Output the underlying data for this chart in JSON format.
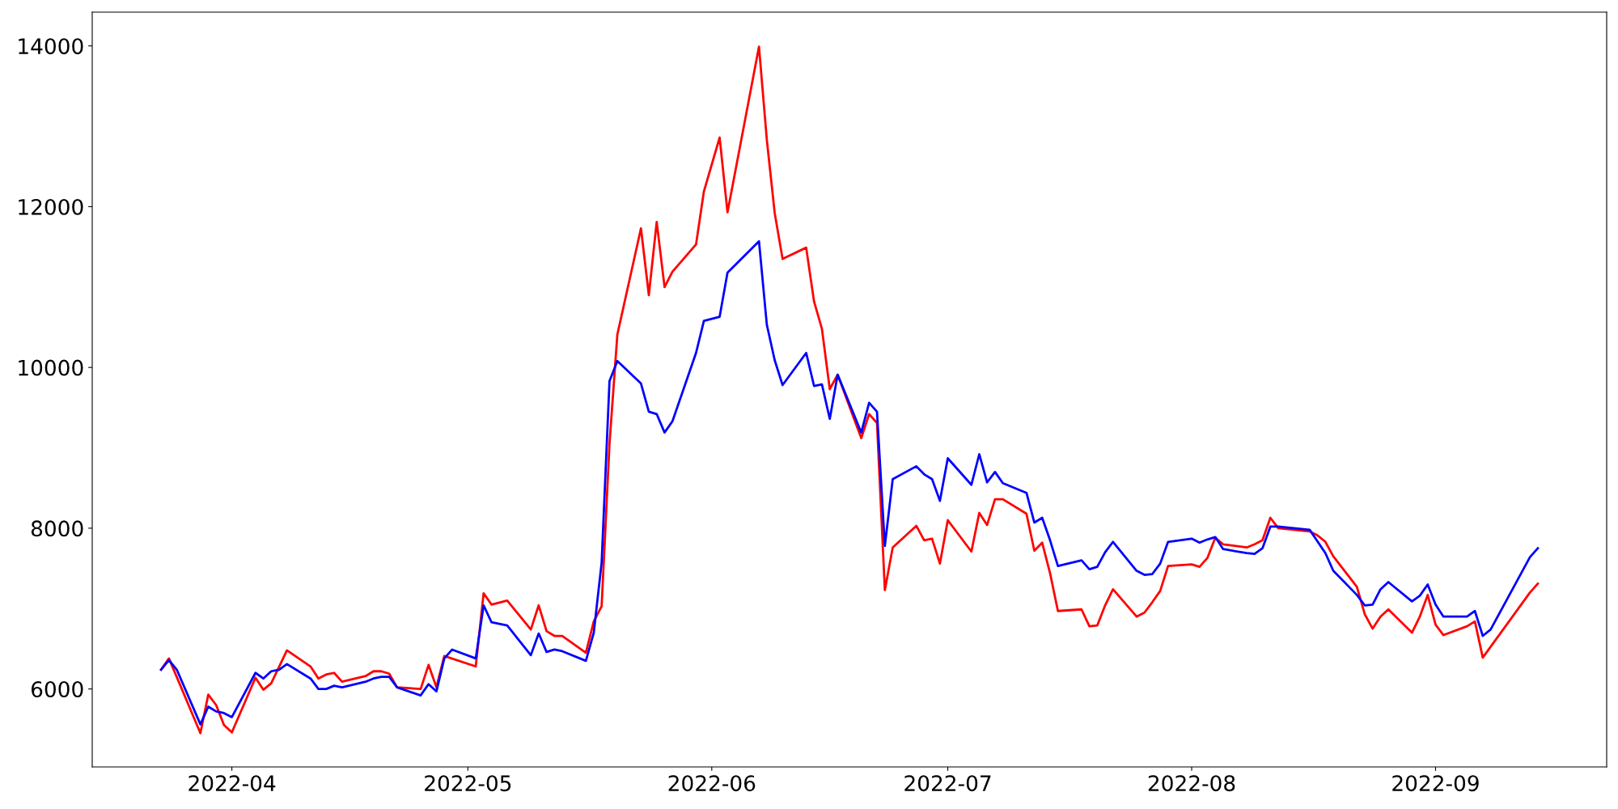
{
  "chart_data": {
    "type": "line",
    "xlim": [
      "2022-03-14T06:00",
      "2022-09-22T18:00"
    ],
    "ylim": [
      5030,
      14420
    ],
    "xticks": [
      {
        "value": "2022-04-01",
        "label": "2022-04"
      },
      {
        "value": "2022-05-01",
        "label": "2022-05"
      },
      {
        "value": "2022-06-01",
        "label": "2022-06"
      },
      {
        "value": "2022-07-01",
        "label": "2022-07"
      },
      {
        "value": "2022-08-01",
        "label": "2022-08"
      },
      {
        "value": "2022-09-01",
        "label": "2022-09"
      }
    ],
    "yticks": [
      6000,
      8000,
      10000,
      12000,
      14000
    ],
    "grid": false,
    "marker": "none",
    "line_style": "solid",
    "series": [
      {
        "color": "#ff0000",
        "x": [
          "2022-03-23",
          "2022-03-24",
          "2022-03-28",
          "2022-03-29",
          "2022-03-30",
          "2022-03-31",
          "2022-04-01",
          "2022-04-04",
          "2022-04-05",
          "2022-04-06",
          "2022-04-08",
          "2022-04-11",
          "2022-04-12",
          "2022-04-13",
          "2022-04-14",
          "2022-04-15",
          "2022-04-18",
          "2022-04-19",
          "2022-04-20",
          "2022-04-21",
          "2022-04-22",
          "2022-04-25",
          "2022-04-26",
          "2022-04-27",
          "2022-04-28",
          "2022-05-02",
          "2022-05-03",
          "2022-05-04",
          "2022-05-06",
          "2022-05-09",
          "2022-05-10",
          "2022-05-11",
          "2022-05-12",
          "2022-05-13",
          "2022-05-16",
          "2022-05-17",
          "2022-05-18",
          "2022-05-19",
          "2022-05-20",
          "2022-05-23",
          "2022-05-24",
          "2022-05-25",
          "2022-05-26",
          "2022-05-27",
          "2022-05-30",
          "2022-05-31",
          "2022-06-02",
          "2022-06-03",
          "2022-06-07",
          "2022-06-08",
          "2022-06-09",
          "2022-06-10",
          "2022-06-13",
          "2022-06-14",
          "2022-06-15",
          "2022-06-16",
          "2022-06-17",
          "2022-06-20",
          "2022-06-21",
          "2022-06-22",
          "2022-06-23",
          "2022-06-24",
          "2022-06-27",
          "2022-06-28",
          "2022-06-29",
          "2022-06-30",
          "2022-07-01",
          "2022-07-04",
          "2022-07-05",
          "2022-07-06",
          "2022-07-07",
          "2022-07-08",
          "2022-07-11",
          "2022-07-12",
          "2022-07-13",
          "2022-07-14",
          "2022-07-15",
          "2022-07-18",
          "2022-07-19",
          "2022-07-20",
          "2022-07-21",
          "2022-07-22",
          "2022-07-25",
          "2022-07-26",
          "2022-07-27",
          "2022-07-28",
          "2022-07-29",
          "2022-08-01",
          "2022-08-02",
          "2022-08-03",
          "2022-08-04",
          "2022-08-05",
          "2022-08-08",
          "2022-08-09",
          "2022-08-10",
          "2022-08-11",
          "2022-08-12",
          "2022-08-16",
          "2022-08-17",
          "2022-08-18",
          "2022-08-19",
          "2022-08-22",
          "2022-08-23",
          "2022-08-24",
          "2022-08-25",
          "2022-08-26",
          "2022-08-29",
          "2022-08-30",
          "2022-08-31",
          "2022-09-01",
          "2022-09-02",
          "2022-09-05",
          "2022-09-06",
          "2022-09-07",
          "2022-09-13",
          "2022-09-14"
        ],
        "values": [
          6240,
          6380,
          5450,
          5930,
          5800,
          5550,
          5460,
          6140,
          5990,
          6070,
          6480,
          6280,
          6130,
          6180,
          6200,
          6090,
          6160,
          6220,
          6220,
          6190,
          6020,
          6000,
          6300,
          6020,
          6410,
          6280,
          7190,
          7050,
          7100,
          6740,
          7040,
          6720,
          6660,
          6660,
          6450,
          6840,
          7030,
          9050,
          10410,
          11730,
          10900,
          11810,
          11000,
          11190,
          11530,
          12190,
          12860,
          11930,
          13990,
          12830,
          11920,
          11350,
          11490,
          10820,
          10480,
          9730,
          9910,
          9120,
          9420,
          9310,
          7230,
          7760,
          8030,
          7850,
          7870,
          7560,
          8100,
          7710,
          8190,
          8040,
          8360,
          8360,
          8180,
          7720,
          7820,
          7440,
          6970,
          6990,
          6780,
          6790,
          7040,
          7240,
          6900,
          6950,
          7080,
          7220,
          7530,
          7550,
          7520,
          7630,
          7880,
          7800,
          7760,
          7800,
          7850,
          8130,
          8000,
          7960,
          7910,
          7830,
          7650,
          7270,
          6930,
          6750,
          6900,
          6990,
          6700,
          6900,
          7170,
          6800,
          6670,
          6780,
          6840,
          6390,
          7200,
          7310
        ]
      },
      {
        "color": "#0000ff",
        "x": [
          "2022-03-23",
          "2022-03-24",
          "2022-03-25",
          "2022-03-28",
          "2022-03-29",
          "2022-03-30",
          "2022-03-31",
          "2022-04-01",
          "2022-04-04",
          "2022-04-05",
          "2022-04-06",
          "2022-04-07",
          "2022-04-08",
          "2022-04-11",
          "2022-04-12",
          "2022-04-13",
          "2022-04-14",
          "2022-04-15",
          "2022-04-18",
          "2022-04-19",
          "2022-04-20",
          "2022-04-21",
          "2022-04-22",
          "2022-04-25",
          "2022-04-26",
          "2022-04-27",
          "2022-04-28",
          "2022-04-29",
          "2022-05-02",
          "2022-05-03",
          "2022-05-04",
          "2022-05-06",
          "2022-05-09",
          "2022-05-10",
          "2022-05-11",
          "2022-05-12",
          "2022-05-13",
          "2022-05-16",
          "2022-05-17",
          "2022-05-18",
          "2022-05-19",
          "2022-05-20",
          "2022-05-23",
          "2022-05-24",
          "2022-05-25",
          "2022-05-26",
          "2022-05-27",
          "2022-05-30",
          "2022-05-31",
          "2022-06-02",
          "2022-06-03",
          "2022-06-07",
          "2022-06-08",
          "2022-06-09",
          "2022-06-10",
          "2022-06-13",
          "2022-06-14",
          "2022-06-15",
          "2022-06-16",
          "2022-06-17",
          "2022-06-20",
          "2022-06-21",
          "2022-06-22",
          "2022-06-23",
          "2022-06-24",
          "2022-06-27",
          "2022-06-28",
          "2022-06-29",
          "2022-06-30",
          "2022-07-01",
          "2022-07-04",
          "2022-07-05",
          "2022-07-06",
          "2022-07-07",
          "2022-07-08",
          "2022-07-11",
          "2022-07-12",
          "2022-07-13",
          "2022-07-14",
          "2022-07-15",
          "2022-07-18",
          "2022-07-19",
          "2022-07-20",
          "2022-07-21",
          "2022-07-22",
          "2022-07-25",
          "2022-07-26",
          "2022-07-27",
          "2022-07-28",
          "2022-07-29",
          "2022-08-01",
          "2022-08-02",
          "2022-08-03",
          "2022-08-04",
          "2022-08-05",
          "2022-08-08",
          "2022-08-09",
          "2022-08-10",
          "2022-08-11",
          "2022-08-12",
          "2022-08-16",
          "2022-08-18",
          "2022-08-19",
          "2022-08-22",
          "2022-08-23",
          "2022-08-24",
          "2022-08-25",
          "2022-08-26",
          "2022-08-29",
          "2022-08-30",
          "2022-08-31",
          "2022-09-01",
          "2022-09-02",
          "2022-09-05",
          "2022-09-06",
          "2022-09-07",
          "2022-09-08",
          "2022-09-13",
          "2022-09-14"
        ],
        "values": [
          6240,
          6360,
          6240,
          5560,
          5780,
          5720,
          5700,
          5650,
          6200,
          6130,
          6220,
          6240,
          6310,
          6130,
          6000,
          6000,
          6040,
          6020,
          6090,
          6130,
          6150,
          6150,
          6020,
          5920,
          6060,
          5970,
          6380,
          6490,
          6380,
          7040,
          6830,
          6790,
          6420,
          6690,
          6460,
          6490,
          6470,
          6350,
          6700,
          7570,
          9830,
          10080,
          9800,
          9450,
          9420,
          9190,
          9330,
          10180,
          10580,
          10630,
          11180,
          11570,
          10530,
          10090,
          9780,
          10180,
          9770,
          9790,
          9360,
          9910,
          9190,
          9560,
          9450,
          7780,
          8610,
          8770,
          8670,
          8610,
          8340,
          8870,
          8540,
          8920,
          8570,
          8700,
          8560,
          8440,
          8070,
          8130,
          7850,
          7530,
          7600,
          7490,
          7520,
          7700,
          7830,
          7470,
          7420,
          7430,
          7560,
          7830,
          7870,
          7820,
          7860,
          7890,
          7740,
          7690,
          7680,
          7750,
          8020,
          8020,
          7980,
          7690,
          7470,
          7170,
          7040,
          7050,
          7240,
          7330,
          7090,
          7160,
          7300,
          7050,
          6900,
          6900,
          6970,
          6660,
          6740,
          7640,
          7750
        ]
      }
    ]
  }
}
